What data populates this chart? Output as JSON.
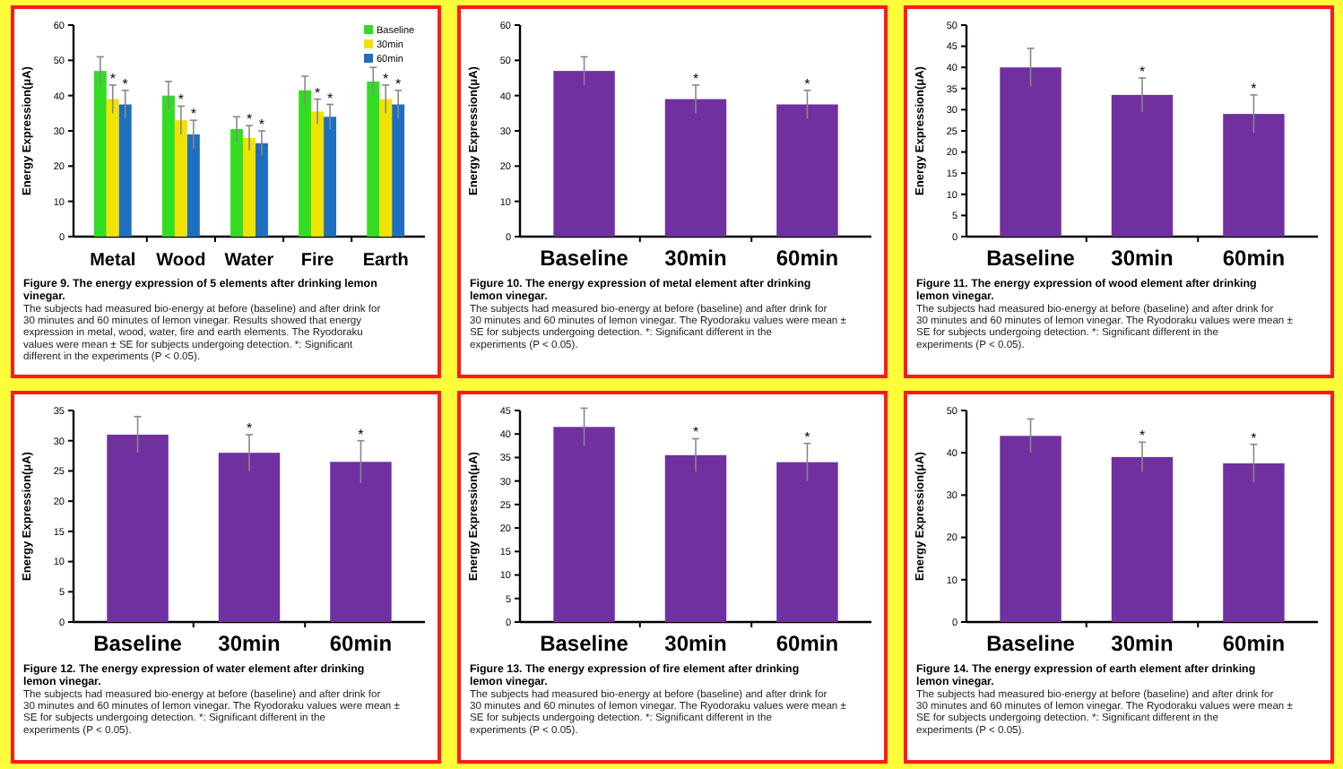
{
  "chart_data": [
    {
      "type": "bar",
      "title": "Figure 9. The energy expression of 5 elements after drinking lemon vinegar.",
      "annotations": [
        "The subjects had measured bio-energy at before (baseline) and after drink for 30 minutes and 60 minutes of lemon vinegar. Results showed that energy expression in metal, wood, water, fire and earth elements. The Ryodoraku values were mean ± SE for subjects undergoing detection. *: Significant different in the experiments (P < 0.05)."
      ],
      "ylabel": "Energy Expression(μA)",
      "categories": [
        "Metal",
        "Wood",
        "Water",
        "Fire",
        "Earth"
      ],
      "ylim": [
        0,
        60
      ],
      "yticks": [
        0,
        10,
        20,
        30,
        40,
        50,
        60
      ],
      "legend": "top right",
      "series": [
        {
          "name": "Baseline",
          "color": "#33dd22",
          "values": [
            47,
            40,
            30.5,
            41.5,
            44
          ],
          "errors": [
            4,
            4,
            3.5,
            4,
            4
          ]
        },
        {
          "name": "30min",
          "color": "#f2e200",
          "values": [
            39,
            33,
            28,
            35.5,
            39
          ],
          "errors": [
            4,
            4,
            3.5,
            3.5,
            4
          ],
          "value_labels": [
            "*",
            "*",
            "*",
            "*",
            "*"
          ]
        },
        {
          "name": "60min",
          "color": "#1f6fc0",
          "values": [
            37.5,
            29,
            26.5,
            34,
            37.5
          ],
          "errors": [
            4,
            4,
            3.5,
            3.5,
            4
          ],
          "value_labels": [
            "*",
            "*",
            "*",
            "*",
            "*"
          ]
        }
      ]
    },
    {
      "type": "bar",
      "title": "Figure 10. The energy expression of metal element after drinking lemon vinegar.",
      "annotations": [
        "The subjects had measured bio-energy at before (baseline) and after drink for 30 minutes and 60 minutes of lemon vinegar. The Ryodoraku values were mean ± SE for subjects undergoing detection. *: Significant different in the experiments (P < 0.05)."
      ],
      "ylabel": "Energy Expression(μA)",
      "categories": [
        "Baseline",
        "30min",
        "60min"
      ],
      "ylim": [
        0,
        60
      ],
      "yticks": [
        0,
        10,
        20,
        30,
        40,
        50,
        60
      ],
      "color": "#7030a0",
      "values": [
        47,
        39,
        37.5
      ],
      "errors": [
        4,
        4,
        4
      ],
      "value_labels": [
        null,
        "*",
        "*"
      ]
    },
    {
      "type": "bar",
      "title": "Figure 11. The energy expression of wood element after drinking lemon vinegar.",
      "annotations": [
        "The subjects had measured bio-energy at before (baseline) and after drink for 30 minutes and 60 minutes of lemon vinegar. The Ryodoraku values were mean ± SE for subjects undergoing detection. *: Significant different in the experiments (P < 0.05)."
      ],
      "ylabel": "Energy Expression(μA)",
      "categories": [
        "Baseline",
        "30min",
        "60min"
      ],
      "ylim": [
        0,
        50
      ],
      "yticks": [
        0,
        5,
        10,
        15,
        20,
        25,
        30,
        35,
        40,
        45,
        50
      ],
      "color": "#7030a0",
      "values": [
        40,
        33.5,
        29
      ],
      "errors": [
        4.5,
        4,
        4.5
      ],
      "value_labels": [
        null,
        "*",
        "*"
      ]
    },
    {
      "type": "bar",
      "title": "Figure 12. The energy expression of water element after drinking lemon vinegar.",
      "annotations": [
        "The subjects had measured bio-energy at before (baseline) and after drink for 30 minutes and 60 minutes of lemon vinegar. The Ryodoraku values were mean ± SE for subjects undergoing detection. *: Significant different in the experiments (P < 0.05)."
      ],
      "ylabel": "Energy Expression(μA)",
      "categories": [
        "Baseline",
        "30min",
        "60min"
      ],
      "ylim": [
        0,
        35
      ],
      "yticks": [
        0,
        5,
        10,
        15,
        20,
        25,
        30,
        35
      ],
      "color": "#7030a0",
      "values": [
        31,
        28,
        26.5
      ],
      "errors": [
        3,
        3,
        3.5
      ],
      "value_labels": [
        null,
        "*",
        "*"
      ]
    },
    {
      "type": "bar",
      "title": "Figure 13. The energy expression of fire element after drinking lemon vinegar.",
      "annotations": [
        "The subjects had measured bio-energy at before (baseline) and after drink for 30 minutes and 60 minutes of lemon vinegar. The Ryodoraku values were mean ± SE for subjects undergoing detection. *: Significant different in the experiments (P < 0.05)."
      ],
      "ylabel": "Energy Expression(μA)",
      "categories": [
        "Baseline",
        "30min",
        "60min"
      ],
      "ylim": [
        0,
        45
      ],
      "yticks": [
        0,
        5,
        10,
        15,
        20,
        25,
        30,
        35,
        40,
        45
      ],
      "color": "#7030a0",
      "values": [
        41.5,
        35.5,
        34
      ],
      "errors": [
        4,
        3.5,
        4
      ],
      "value_labels": [
        null,
        "*",
        "*"
      ]
    },
    {
      "type": "bar",
      "title": "Figure 14. The energy expression of earth element after drinking lemon vinegar.",
      "annotations": [
        "The subjects had measured bio-energy at before (baseline) and after drink for 30 minutes and 60 minutes of lemon vinegar. The Ryodoraku values were mean ± SE for subjects undergoing detection. *: Significant different in the experiments (P < 0.05)."
      ],
      "ylabel": "Energy Expression(μA)",
      "categories": [
        "Baseline",
        "30min",
        "60min"
      ],
      "ylim": [
        0,
        50
      ],
      "yticks": [
        0,
        10,
        20,
        30,
        40,
        50
      ],
      "color": "#7030a0",
      "values": [
        44,
        39,
        37.5
      ],
      "errors": [
        4,
        3.5,
        4.5
      ],
      "value_labels": [
        null,
        "*",
        "*"
      ]
    }
  ]
}
